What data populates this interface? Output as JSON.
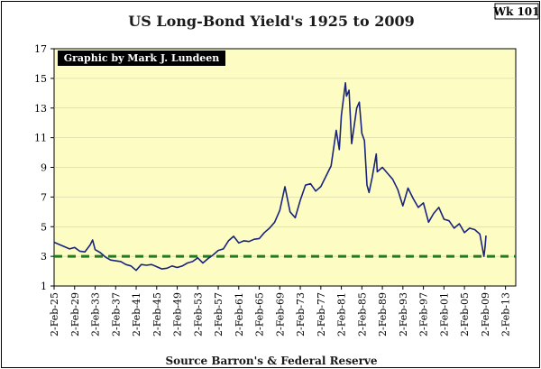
{
  "chart_data": {
    "type": "line",
    "title": "US Long-Bond Yield's 1925 to 2009",
    "week_badge": "Wk 101",
    "credit": "Graphic by Mark J. Lundeen",
    "source": "Source Barron's & Federal Reserve",
    "xlabel": "",
    "ylabel": "",
    "xlim": [
      1925,
      2015
    ],
    "ylim": [
      1,
      17
    ],
    "y_ticks": [
      "1",
      "3",
      "5",
      "7",
      "9",
      "11",
      "13",
      "15",
      "17"
    ],
    "x_ticks": [
      {
        "label": "2-Feb-25",
        "year": 1925
      },
      {
        "label": "2-Feb-29",
        "year": 1929
      },
      {
        "label": "2-Feb-33",
        "year": 1933
      },
      {
        "label": "2-Feb-37",
        "year": 1937
      },
      {
        "label": "2-Feb-41",
        "year": 1941
      },
      {
        "label": "2-Feb-45",
        "year": 1945
      },
      {
        "label": "2-Feb-49",
        "year": 1949
      },
      {
        "label": "2-Feb-53",
        "year": 1953
      },
      {
        "label": "2-Feb-57",
        "year": 1957
      },
      {
        "label": "2-Feb-61",
        "year": 1961
      },
      {
        "label": "2-Feb-65",
        "year": 1965
      },
      {
        "label": "2-Feb-69",
        "year": 1969
      },
      {
        "label": "2-Feb-73",
        "year": 1973
      },
      {
        "label": "2-Feb-77",
        "year": 1977
      },
      {
        "label": "2-Feb-81",
        "year": 1981
      },
      {
        "label": "2-Feb-85",
        "year": 1985
      },
      {
        "label": "2-Feb-89",
        "year": 1989
      },
      {
        "label": "2-Feb-93",
        "year": 1993
      },
      {
        "label": "2-Feb-97",
        "year": 1997
      },
      {
        "label": "2-Feb-01",
        "year": 2001
      },
      {
        "label": "2-Feb-05",
        "year": 2005
      },
      {
        "label": "2-Feb-09",
        "year": 2009
      },
      {
        "label": "2-Feb-13",
        "year": 2013
      }
    ],
    "reference_line": {
      "y": 3,
      "style": "dashed",
      "color": "#1e7d1e"
    },
    "series": [
      {
        "name": "US Long-Bond Yield",
        "color": "#1a237e",
        "points": [
          [
            1925.0,
            3.95
          ],
          [
            1926.0,
            3.8
          ],
          [
            1927.0,
            3.65
          ],
          [
            1928.0,
            3.5
          ],
          [
            1929.0,
            3.6
          ],
          [
            1930.0,
            3.35
          ],
          [
            1931.0,
            3.3
          ],
          [
            1932.0,
            3.75
          ],
          [
            1932.5,
            4.1
          ],
          [
            1933.0,
            3.45
          ],
          [
            1934.0,
            3.25
          ],
          [
            1935.0,
            2.95
          ],
          [
            1936.0,
            2.75
          ],
          [
            1937.0,
            2.7
          ],
          [
            1938.0,
            2.65
          ],
          [
            1939.0,
            2.45
          ],
          [
            1940.0,
            2.35
          ],
          [
            1941.0,
            2.05
          ],
          [
            1942.0,
            2.45
          ],
          [
            1943.0,
            2.4
          ],
          [
            1944.0,
            2.45
          ],
          [
            1945.0,
            2.3
          ],
          [
            1946.0,
            2.15
          ],
          [
            1947.0,
            2.2
          ],
          [
            1948.0,
            2.35
          ],
          [
            1949.0,
            2.25
          ],
          [
            1950.0,
            2.35
          ],
          [
            1951.0,
            2.55
          ],
          [
            1952.0,
            2.65
          ],
          [
            1953.0,
            2.9
          ],
          [
            1954.0,
            2.55
          ],
          [
            1955.0,
            2.85
          ],
          [
            1956.0,
            3.1
          ],
          [
            1957.0,
            3.4
          ],
          [
            1958.0,
            3.5
          ],
          [
            1959.0,
            4.05
          ],
          [
            1960.0,
            4.35
          ],
          [
            1961.0,
            3.9
          ],
          [
            1962.0,
            4.05
          ],
          [
            1963.0,
            4.0
          ],
          [
            1964.0,
            4.15
          ],
          [
            1965.0,
            4.2
          ],
          [
            1966.0,
            4.6
          ],
          [
            1967.0,
            4.9
          ],
          [
            1968.0,
            5.3
          ],
          [
            1969.0,
            6.1
          ],
          [
            1970.0,
            7.7
          ],
          [
            1971.0,
            6.0
          ],
          [
            1972.0,
            5.6
          ],
          [
            1973.0,
            6.8
          ],
          [
            1974.0,
            7.8
          ],
          [
            1975.0,
            7.9
          ],
          [
            1976.0,
            7.4
          ],
          [
            1977.0,
            7.7
          ],
          [
            1978.0,
            8.4
          ],
          [
            1979.0,
            9.1
          ],
          [
            1980.0,
            11.5
          ],
          [
            1980.6,
            10.2
          ],
          [
            1981.0,
            12.5
          ],
          [
            1981.8,
            14.7
          ],
          [
            1982.0,
            13.8
          ],
          [
            1982.5,
            14.2
          ],
          [
            1983.0,
            10.6
          ],
          [
            1983.5,
            11.8
          ],
          [
            1984.0,
            13.0
          ],
          [
            1984.5,
            13.4
          ],
          [
            1985.0,
            11.3
          ],
          [
            1985.5,
            10.8
          ],
          [
            1986.0,
            7.8
          ],
          [
            1986.4,
            7.3
          ],
          [
            1987.0,
            8.3
          ],
          [
            1987.8,
            9.9
          ],
          [
            1988.0,
            8.7
          ],
          [
            1989.0,
            9.0
          ],
          [
            1990.0,
            8.6
          ],
          [
            1991.0,
            8.2
          ],
          [
            1992.0,
            7.5
          ],
          [
            1993.0,
            6.4
          ],
          [
            1994.0,
            7.6
          ],
          [
            1995.0,
            6.9
          ],
          [
            1996.0,
            6.3
          ],
          [
            1997.0,
            6.6
          ],
          [
            1998.0,
            5.3
          ],
          [
            1999.0,
            5.9
          ],
          [
            2000.0,
            6.3
          ],
          [
            2001.0,
            5.5
          ],
          [
            2002.0,
            5.4
          ],
          [
            2003.0,
            4.9
          ],
          [
            2004.0,
            5.2
          ],
          [
            2005.0,
            4.6
          ],
          [
            2006.0,
            4.9
          ],
          [
            2007.0,
            4.8
          ],
          [
            2008.0,
            4.5
          ],
          [
            2008.8,
            3.0
          ],
          [
            2009.0,
            3.6
          ],
          [
            2009.2,
            4.4
          ]
        ]
      }
    ]
  }
}
